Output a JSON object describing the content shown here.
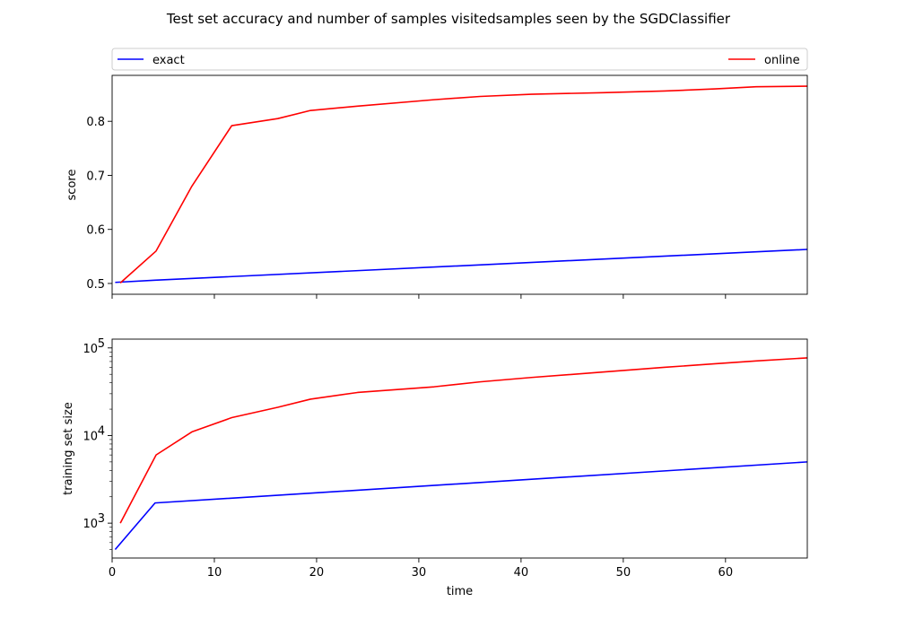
{
  "figure": {
    "suptitle": "Test set accuracy and number of samples visitedsamples seen by the SGDClassifier"
  },
  "legend": {
    "placement": "top, spanning",
    "entries": [
      {
        "label": "exact",
        "color": "#0000ff"
      },
      {
        "label": "online",
        "color": "#ff0000"
      }
    ]
  },
  "chart_data": [
    {
      "type": "line",
      "ylabel": "score",
      "xlim": [
        0,
        68
      ],
      "ylim": [
        0.48,
        0.885
      ],
      "yscale": "linear",
      "yticks": [
        0.5,
        0.6,
        0.7,
        0.8
      ],
      "ytick_labels": [
        "0.5",
        "0.6",
        "0.7",
        "0.8"
      ],
      "xticks": [
        0,
        10,
        20,
        30,
        40,
        50,
        60
      ],
      "show_xtick_labels": false,
      "grid": false,
      "series": [
        {
          "name": "exact",
          "color": "#0000ff",
          "x": [
            0.3,
            4.2,
            68
          ],
          "y": [
            0.502,
            0.506,
            0.563
          ]
        },
        {
          "name": "online",
          "color": "#ff0000",
          "x": [
            0.8,
            4.3,
            7.8,
            11.7,
            16.2,
            19.4,
            24,
            31.5,
            36,
            41,
            48,
            54,
            59,
            63,
            68
          ],
          "y": [
            0.501,
            0.56,
            0.68,
            0.792,
            0.805,
            0.82,
            0.828,
            0.84,
            0.846,
            0.85,
            0.853,
            0.856,
            0.86,
            0.864,
            0.865
          ]
        }
      ]
    },
    {
      "type": "line",
      "xlabel": "time",
      "ylabel": "training set size",
      "xlim": [
        0,
        68
      ],
      "ylim": [
        400,
        126000
      ],
      "yscale": "log",
      "yticks": [
        1000,
        10000,
        100000
      ],
      "ytick_labels": [
        "10",
        "10",
        "10"
      ],
      "ytick_exponents": [
        "3",
        "4",
        "5"
      ],
      "xticks": [
        0,
        10,
        20,
        30,
        40,
        50,
        60
      ],
      "xtick_labels": [
        "0",
        "10",
        "20",
        "30",
        "40",
        "50",
        "60"
      ],
      "grid": false,
      "series": [
        {
          "name": "exact",
          "color": "#0000ff",
          "x": [
            0.3,
            4.2,
            68
          ],
          "y": [
            500,
            1700,
            5000
          ]
        },
        {
          "name": "online",
          "color": "#ff0000",
          "x": [
            0.8,
            4.3,
            7.8,
            11.7,
            16.2,
            19.4,
            24,
            31.5,
            36,
            41,
            48,
            54,
            59,
            63,
            68
          ],
          "y": [
            1000,
            6000,
            11000,
            16000,
            21000,
            26000,
            31000,
            36000,
            41000,
            46000,
            53000,
            60000,
            66000,
            71000,
            77000
          ]
        }
      ]
    }
  ]
}
